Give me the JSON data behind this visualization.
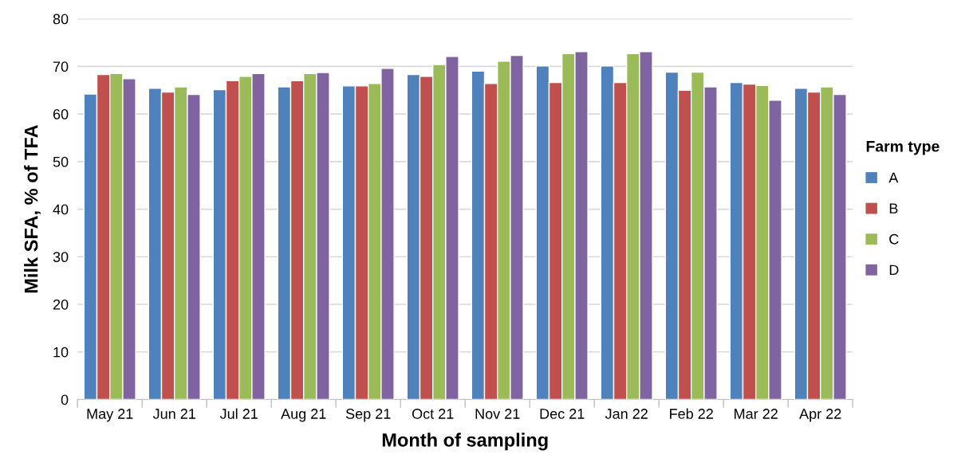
{
  "chart_data": {
    "type": "bar",
    "xlabel": "Month of sampling",
    "ylabel": "Milk SFA, % of TFA",
    "legend_title": "Farm type",
    "categories": [
      "May 21",
      "Jun 21",
      "Jul 21",
      "Aug 21",
      "Sep 21",
      "Oct 21",
      "Nov 21",
      "Dec 21",
      "Jan 22",
      "Feb 22",
      "Mar 22",
      "Apr 22"
    ],
    "series": [
      {
        "name": "A",
        "color": "#4f81bd",
        "values": [
          64.2,
          65.4,
          65.1,
          65.7,
          65.9,
          68.3,
          69.0,
          70.1,
          70.1,
          68.8,
          66.6,
          65.4
        ]
      },
      {
        "name": "B",
        "color": "#c0504d",
        "values": [
          68.3,
          64.6,
          67.0,
          67.0,
          65.9,
          67.9,
          66.4,
          66.6,
          66.6,
          65.0,
          66.3,
          64.6
        ]
      },
      {
        "name": "C",
        "color": "#9bbb59",
        "values": [
          68.5,
          65.7,
          67.9,
          68.5,
          66.4,
          70.4,
          71.1,
          72.7,
          72.7,
          68.8,
          66.0,
          65.7
        ]
      },
      {
        "name": "D",
        "color": "#8064a2",
        "values": [
          67.4,
          64.1,
          68.5,
          68.7,
          69.6,
          72.1,
          72.3,
          73.1,
          73.1,
          65.7,
          62.9,
          64.1
        ]
      }
    ],
    "ylim": [
      0,
      80
    ],
    "yticks": [
      0,
      10,
      20,
      30,
      40,
      50,
      60,
      70,
      80
    ],
    "grid": "y",
    "legend": "right"
  }
}
